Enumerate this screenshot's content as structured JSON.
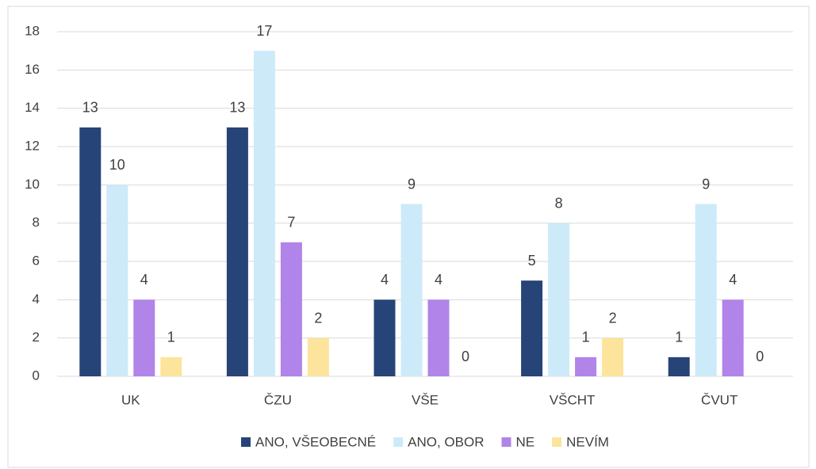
{
  "chart_data": {
    "type": "bar",
    "categories": [
      "UK",
      "ČZU",
      "VŠE",
      "VŠCHT",
      "ČVUT"
    ],
    "series": [
      {
        "name": "ANO, VŠEOBECNÉ",
        "color": "#264478",
        "values": [
          13,
          13,
          4,
          5,
          1
        ]
      },
      {
        "name": "ANO, OBOR",
        "color": "#cdeaf9",
        "values": [
          10,
          17,
          9,
          8,
          9
        ]
      },
      {
        "name": "NE",
        "color": "#b084e8",
        "values": [
          4,
          7,
          4,
          1,
          4
        ]
      },
      {
        "name": "NEVÍM",
        "color": "#fde49c",
        "values": [
          1,
          2,
          0,
          2,
          0
        ]
      }
    ],
    "ylim": [
      0,
      18
    ],
    "yticks": [
      0,
      2,
      4,
      6,
      8,
      10,
      12,
      14,
      16,
      18
    ],
    "grid": true,
    "legend": "bottom"
  }
}
